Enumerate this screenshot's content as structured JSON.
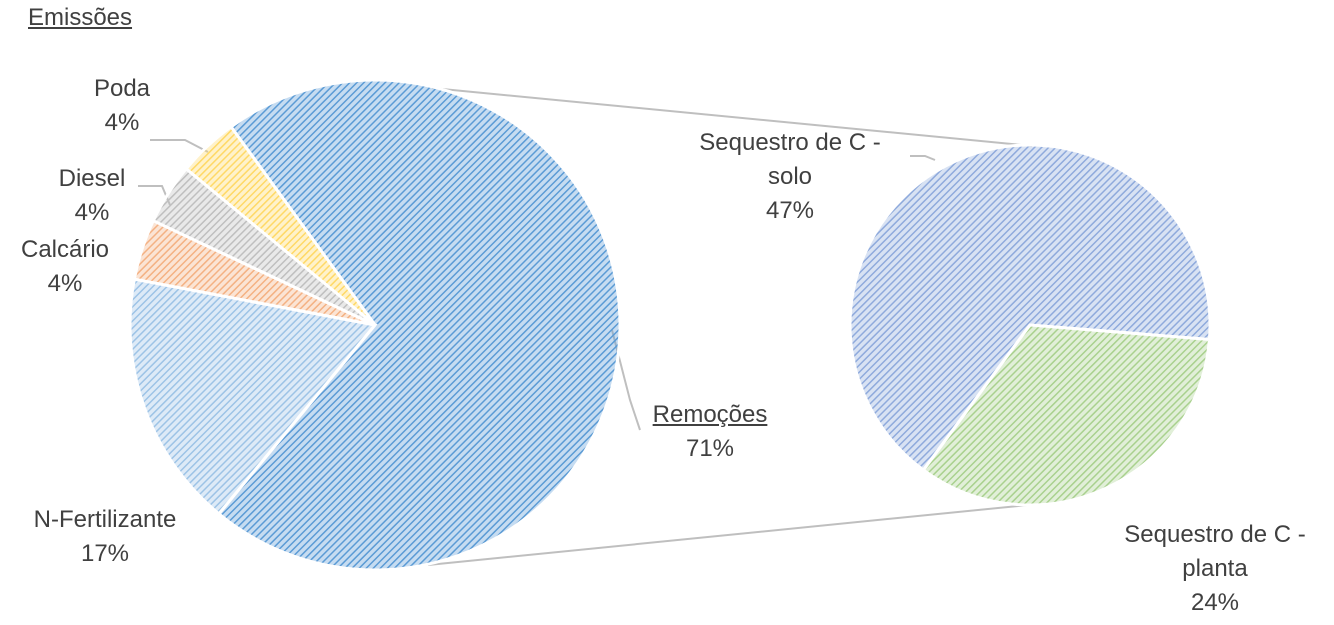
{
  "chart_data": [
    {
      "type": "pie",
      "title": "Emissões",
      "categories": [
        "Remoções",
        "N-Fertilizante",
        "Calcário",
        "Diesel",
        "Poda"
      ],
      "values": [
        71,
        17,
        4,
        4,
        4
      ],
      "value_labels": [
        "71%",
        "17%",
        "4%",
        "4%",
        "4%"
      ],
      "colors": [
        "#5b9bd5",
        "#9dc3e6",
        "#f4b183",
        "#bfbfbf",
        "#ffd966"
      ]
    },
    {
      "type": "pie",
      "categories": [
        "Sequestro de C - solo",
        "Sequestro de C - planta"
      ],
      "values": [
        47,
        24
      ],
      "value_labels": [
        "47%",
        "24%"
      ],
      "colors": [
        "#8faadc",
        "#a9d18e"
      ]
    }
  ]
}
